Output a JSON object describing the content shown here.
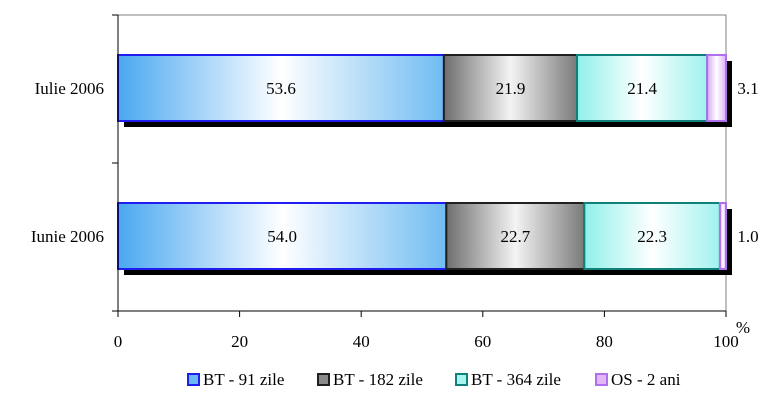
{
  "chart_data": {
    "type": "bar",
    "orientation": "horizontal",
    "stacked": true,
    "categories": [
      "Iulie 2006",
      "Iunie 2006"
    ],
    "series": [
      {
        "name": "BT - 91 zile",
        "values": [
          53.6,
          54.0
        ],
        "labels": [
          "53.6",
          "54.0"
        ],
        "color": "#6ab8f0"
      },
      {
        "name": "BT - 182 zile",
        "values": [
          21.9,
          22.7
        ],
        "labels": [
          "21.9",
          "22.7"
        ],
        "color": "#8a8a8a"
      },
      {
        "name": "BT - 364 zile",
        "values": [
          21.4,
          22.3
        ],
        "labels": [
          "21.4",
          "22.3"
        ],
        "color": "#a8f5f0"
      },
      {
        "name": "OS - 2 ani",
        "values": [
          3.1,
          1.0
        ],
        "labels": [
          "3.1",
          "1.0"
        ],
        "color": "#e2b8f8"
      }
    ],
    "series_border_colors": [
      "#1e1ef0",
      "#202020",
      "#10807a",
      "#b070ee"
    ],
    "xlim": [
      0,
      100
    ],
    "xticks": [
      "0",
      "20",
      "40",
      "60",
      "80",
      "100"
    ],
    "xunit": "%",
    "legend_position": "bottom",
    "grid": false
  }
}
